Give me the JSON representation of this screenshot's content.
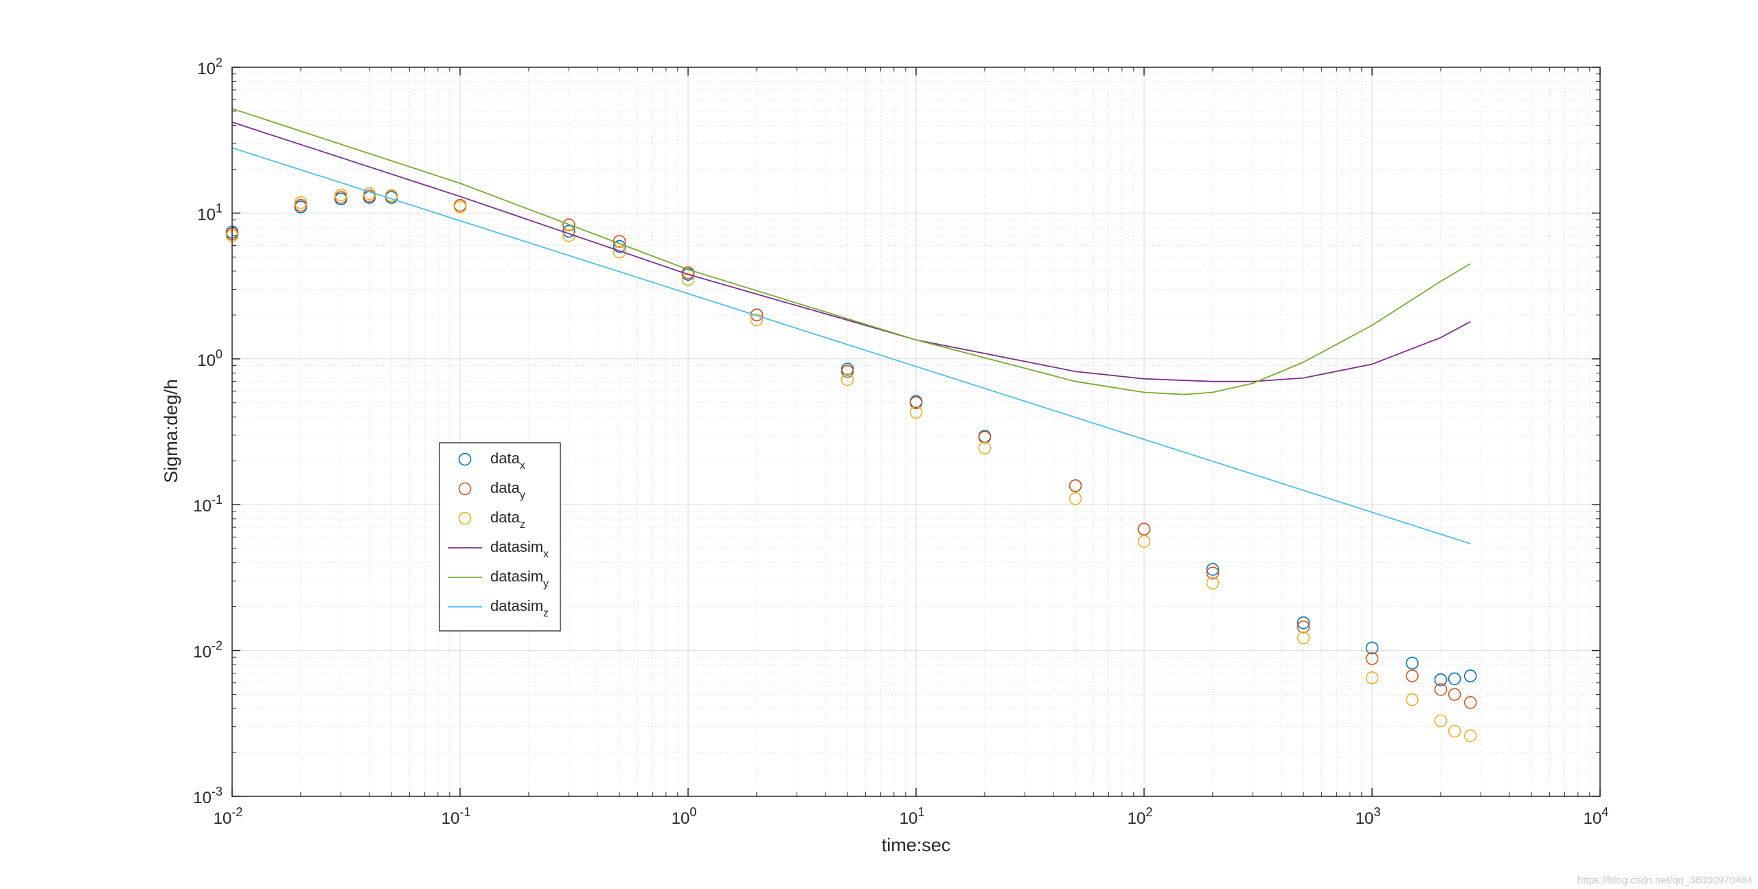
{
  "chart_data": {
    "type": "scatter",
    "xlabel": "time:sec",
    "ylabel": "Sigma:deg/h",
    "xscale": "log",
    "yscale": "log",
    "xlim": [
      0.01,
      10000
    ],
    "ylim": [
      0.001,
      100
    ],
    "grid": true,
    "legend_position": "left-middle",
    "x_ticks": [
      {
        "base": "10",
        "exp": "-2"
      },
      {
        "base": "10",
        "exp": "-1"
      },
      {
        "base": "10",
        "exp": "0"
      },
      {
        "base": "10",
        "exp": "1"
      },
      {
        "base": "10",
        "exp": "2"
      },
      {
        "base": "10",
        "exp": "3"
      },
      {
        "base": "10",
        "exp": "4"
      }
    ],
    "y_ticks": [
      {
        "base": "10",
        "exp": "-3"
      },
      {
        "base": "10",
        "exp": "-2"
      },
      {
        "base": "10",
        "exp": "-1"
      },
      {
        "base": "10",
        "exp": "0"
      },
      {
        "base": "10",
        "exp": "1"
      },
      {
        "base": "10",
        "exp": "2"
      }
    ],
    "series": [
      {
        "name": "data",
        "subscript": "x",
        "kind": "markers",
        "color": "#0072BD",
        "x": [
          0.01,
          0.02,
          0.03,
          0.04,
          0.05,
          0.1,
          0.3,
          0.5,
          1,
          2,
          5,
          10,
          20,
          50,
          100,
          200,
          500,
          1000,
          1500,
          2000,
          2300,
          2700
        ],
        "y": [
          7.4,
          11.0,
          12.5,
          12.8,
          12.8,
          11.3,
          7.5,
          5.9,
          3.8,
          2.0,
          0.85,
          0.51,
          0.295,
          0.135,
          0.068,
          0.036,
          0.0155,
          0.0104,
          0.0082,
          0.0063,
          0.0064,
          0.0067
        ]
      },
      {
        "name": "data",
        "subscript": "y",
        "kind": "markers",
        "color": "#D95319",
        "x": [
          0.01,
          0.02,
          0.03,
          0.04,
          0.05,
          0.1,
          0.3,
          0.5,
          1,
          2,
          5,
          10,
          20,
          50,
          100,
          200,
          500,
          1000,
          1500,
          2000,
          2300,
          2700
        ],
        "y": [
          7.2,
          11.3,
          12.8,
          13.1,
          13.1,
          11.3,
          8.3,
          6.4,
          3.9,
          2.0,
          0.82,
          0.5,
          0.29,
          0.135,
          0.068,
          0.034,
          0.0145,
          0.0088,
          0.0067,
          0.0054,
          0.005,
          0.0044
        ]
      },
      {
        "name": "data",
        "subscript": "z",
        "kind": "markers",
        "color": "#EDB120",
        "x": [
          0.01,
          0.02,
          0.03,
          0.04,
          0.05,
          0.1,
          0.3,
          0.5,
          1,
          2,
          5,
          10,
          20,
          50,
          100,
          200,
          500,
          1000,
          1500,
          2000,
          2300,
          2700
        ],
        "y": [
          7.0,
          11.8,
          13.3,
          13.6,
          13.2,
          11.0,
          7.0,
          5.4,
          3.5,
          1.85,
          0.72,
          0.43,
          0.245,
          0.11,
          0.056,
          0.029,
          0.0122,
          0.0065,
          0.0046,
          0.0033,
          0.0028,
          0.0026
        ]
      },
      {
        "name": "datasim",
        "subscript": "x",
        "kind": "line",
        "color": "#7E2F8E",
        "x": [
          0.01,
          0.1,
          1,
          10,
          50,
          100,
          200,
          300,
          500,
          1000,
          2000,
          2700
        ],
        "y": [
          42,
          13.0,
          3.8,
          1.35,
          0.82,
          0.73,
          0.7,
          0.7,
          0.74,
          0.92,
          1.4,
          1.8
        ]
      },
      {
        "name": "datasim",
        "subscript": "y",
        "kind": "line",
        "color": "#77AC30",
        "x": [
          0.01,
          0.1,
          1,
          10,
          50,
          100,
          150,
          200,
          300,
          500,
          1000,
          2000,
          2700
        ],
        "y": [
          52,
          16.0,
          4.1,
          1.35,
          0.7,
          0.59,
          0.57,
          0.59,
          0.68,
          0.95,
          1.7,
          3.4,
          4.5
        ]
      },
      {
        "name": "datasim",
        "subscript": "z",
        "kind": "line",
        "color": "#4DBEEE",
        "x": [
          0.01,
          2700
        ],
        "y": [
          28,
          0.054
        ]
      }
    ]
  },
  "watermark": "https://blog.csdn.net/qq_38030970484"
}
